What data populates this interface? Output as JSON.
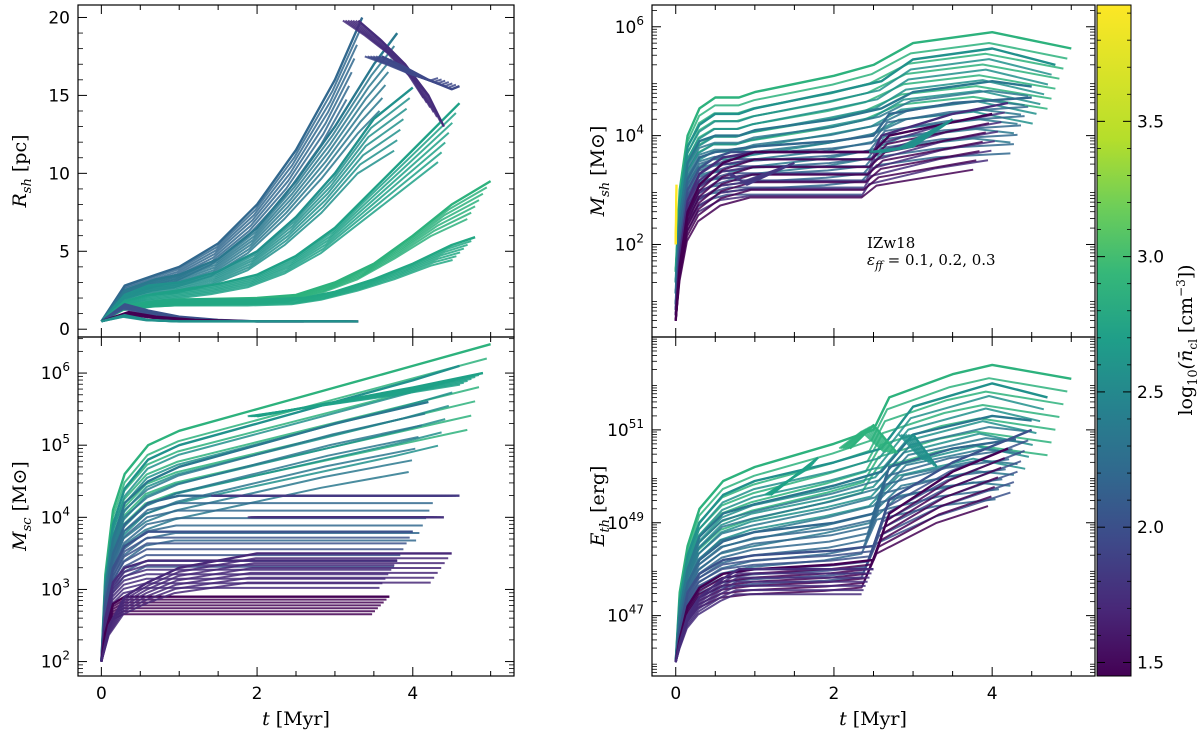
{
  "chart_data": [
    {
      "type": "line",
      "panel": "top-left",
      "xlabel": "",
      "ylabel": "R_sh [pc]",
      "ylabel_main": "R",
      "ylabel_sub": "sh",
      "ylabel_unit": " [pc]",
      "xlim": [
        -0.3,
        5.3
      ],
      "ylim": [
        -0.5,
        20.8
      ],
      "yscale": "linear",
      "yticks": [
        0,
        5,
        10,
        15,
        20
      ],
      "ytick_labels": [
        "0",
        "5",
        "10",
        "15",
        "20"
      ],
      "xticks": [
        0,
        2,
        4
      ],
      "xtick_labels": [
        "",
        "",
        ""
      ],
      "series": [
        {
          "color": "#31688e",
          "x": [
            0,
            0.3,
            0.7,
            1.0,
            1.5,
            2.0,
            2.5,
            3.0,
            3.35
          ],
          "y": [
            0.5,
            2.8,
            3.5,
            4.0,
            5.5,
            8.0,
            11.5,
            16.0,
            20.0
          ]
        },
        {
          "color": "#2a788e",
          "x": [
            0,
            0.3,
            0.7,
            1.0,
            1.5,
            2.0,
            2.5,
            3.0,
            3.5,
            3.8
          ],
          "y": [
            0.5,
            2.5,
            3.2,
            3.5,
            4.5,
            6.5,
            9.5,
            13.0,
            17.0,
            19.0
          ]
        },
        {
          "color": "#21918c",
          "x": [
            0,
            0.3,
            0.6,
            1.0,
            1.5,
            2.0,
            2.5,
            3.0,
            3.5,
            4.0
          ],
          "y": [
            0.5,
            2.2,
            2.8,
            3.0,
            3.7,
            5.0,
            7.2,
            10.0,
            13.5,
            15.5
          ]
        },
        {
          "color": "#1fa187",
          "x": [
            0,
            0.3,
            0.6,
            1.0,
            1.5,
            2.0,
            2.5,
            3.0,
            3.5,
            4.0,
            4.6
          ],
          "y": [
            0.5,
            1.8,
            2.2,
            2.5,
            2.9,
            3.5,
            4.7,
            6.5,
            9.0,
            11.5,
            14.5
          ]
        },
        {
          "color": "#2db27d",
          "x": [
            0,
            0.3,
            0.7,
            1.0,
            2.0,
            2.5,
            3.0,
            3.5,
            4.0,
            4.5,
            5.0
          ],
          "y": [
            0.5,
            1.5,
            1.8,
            1.9,
            2.0,
            2.2,
            3.0,
            4.2,
            6.0,
            8.0,
            9.5
          ]
        },
        {
          "color": "#22a884",
          "x": [
            0,
            0.3,
            0.7,
            1.0,
            2.0,
            2.6,
            3.0,
            3.5,
            4.0,
            4.5,
            4.8
          ],
          "y": [
            0.5,
            1.5,
            1.8,
            1.9,
            1.9,
            2.0,
            2.4,
            3.2,
            4.2,
            5.4,
            5.9
          ]
        },
        {
          "color": "#3b528b",
          "x": [
            0,
            0.3,
            0.6,
            1.0,
            1.5,
            2.0,
            2.6
          ],
          "y": [
            0.5,
            1.6,
            1.2,
            0.8,
            0.6,
            0.5,
            0.5
          ]
        },
        {
          "color": "#440154",
          "x": [
            0,
            0.35,
            0.7,
            1.2,
            2.0,
            2.8,
            3.3
          ],
          "y": [
            0.5,
            1.1,
            0.8,
            0.6,
            0.5,
            0.5,
            0.5
          ]
        },
        {
          "color": "#21918c",
          "x": [
            0,
            0.3,
            0.6,
            1.0,
            2.0,
            3.0,
            3.3
          ],
          "y": [
            0.5,
            0.9,
            0.6,
            0.5,
            0.5,
            0.5,
            0.5
          ]
        },
        {
          "color": "#472d7b",
          "x": [
            3.3,
            3.6,
            3.9,
            4.2,
            4.4
          ],
          "y": [
            19.8,
            18.5,
            17.0,
            15.0,
            13.0
          ]
        },
        {
          "color": "#3e4989",
          "x": [
            3.6,
            3.9,
            4.2,
            4.5,
            4.6
          ],
          "y": [
            17.5,
            16.8,
            16.0,
            15.4,
            15.6
          ]
        }
      ]
    },
    {
      "type": "line",
      "panel": "bottom-left",
      "xlabel": "t [Myr]",
      "xlabel_main": "t",
      "xlabel_unit": " [Myr]",
      "ylabel": "M_sc [M⊙]",
      "ylabel_main": "M",
      "ylabel_sub": "sc",
      "ylabel_unit": " [M⊙]",
      "xlim": [
        -0.3,
        5.3
      ],
      "ylim_log10": [
        1.8,
        6.5
      ],
      "yscale": "log",
      "yticks_log10": [
        2,
        3,
        4,
        5,
        6
      ],
      "ytick_exponents": [
        "2",
        "3",
        "4",
        "5",
        "6"
      ],
      "ytick_base": "10",
      "xticks": [
        0,
        2,
        4
      ],
      "xtick_labels": [
        "0",
        "2",
        "4"
      ],
      "series_log10": [
        {
          "color": "#2db27d",
          "x": [
            0,
            0.05,
            0.15,
            0.3,
            0.6,
            1.0,
            2.0,
            3.0,
            4.0,
            5.0
          ],
          "y": [
            2.0,
            3.2,
            4.1,
            4.6,
            5.0,
            5.2,
            5.5,
            5.8,
            6.1,
            6.4
          ]
        },
        {
          "color": "#21918c",
          "x": [
            0,
            0.05,
            0.15,
            0.3,
            0.6,
            1.0,
            2.0,
            3.0,
            4.0,
            4.6
          ],
          "y": [
            2.0,
            3.1,
            3.9,
            4.4,
            4.8,
            5.0,
            5.3,
            5.6,
            5.9,
            6.1
          ]
        },
        {
          "color": "#2a788e",
          "x": [
            0,
            0.05,
            0.15,
            0.3,
            0.6,
            1.0,
            2.0,
            3.0,
            4.2
          ],
          "y": [
            2.0,
            3.0,
            3.7,
            4.2,
            4.5,
            4.7,
            5.0,
            5.3,
            5.6
          ]
        },
        {
          "color": "#31688e",
          "x": [
            0,
            0.05,
            0.15,
            0.3,
            0.6,
            1.0,
            4.3
          ],
          "y": [
            2.0,
            2.9,
            3.5,
            3.9,
            4.2,
            4.3,
            4.3
          ]
        },
        {
          "color": "#3b528b",
          "x": [
            0,
            0.05,
            0.15,
            0.3,
            0.6,
            4.0
          ],
          "y": [
            2.0,
            2.8,
            3.3,
            3.6,
            3.8,
            3.8
          ]
        },
        {
          "color": "#472d7b",
          "x": [
            0,
            0.05,
            0.15,
            0.3,
            0.6,
            3.8
          ],
          "y": [
            2.0,
            2.6,
            3.1,
            3.3,
            3.4,
            3.4
          ]
        },
        {
          "color": "#440154",
          "x": [
            0,
            0.05,
            0.15,
            0.3,
            0.6,
            3.7
          ],
          "y": [
            2.0,
            2.4,
            2.8,
            2.9,
            2.9,
            2.9
          ]
        },
        {
          "color": "#482878",
          "x": [
            0,
            0.1,
            0.3,
            0.6,
            1.0,
            1.5,
            2.0,
            4.5
          ],
          "y": [
            2.0,
            2.5,
            2.9,
            3.1,
            3.3,
            3.4,
            3.5,
            3.5
          ]
        },
        {
          "color": "#443983",
          "x": [
            1.5,
            4.6
          ],
          "y": [
            4.3,
            4.3
          ]
        },
        {
          "color": "#46337e",
          "x": [
            2.0,
            4.4
          ],
          "y": [
            4.0,
            4.0
          ]
        },
        {
          "color": "#1fa187",
          "x": [
            2.0,
            3.0,
            4.0,
            4.9
          ],
          "y": [
            5.4,
            5.6,
            5.8,
            6.0
          ]
        }
      ]
    },
    {
      "type": "line",
      "panel": "top-right",
      "xlabel": "",
      "ylabel": "M_sh [M⊙]",
      "ylabel_main": "M",
      "ylabel_sub": "sh",
      "ylabel_unit": " [M⊙]",
      "xlim": [
        -0.3,
        5.3
      ],
      "ylim_log10": [
        0.3,
        6.4
      ],
      "yscale": "log",
      "yticks_log10": [
        2,
        4,
        6
      ],
      "ytick_exponents": [
        "2",
        "4",
        "6"
      ],
      "ytick_base": "10",
      "xticks": [
        0,
        2,
        4
      ],
      "xtick_labels": [
        "",
        "",
        ""
      ],
      "annotation_line1": "IZw18",
      "annotation_line2_main": "ε",
      "annotation_line2_sub": "ff",
      "annotation_line2_rest": " = 0.1, 0.2, 0.3",
      "series_log10": [
        {
          "color": "#2db27d",
          "x": [
            0,
            0.05,
            0.15,
            0.3,
            0.5,
            0.8,
            1.0,
            2.0,
            2.5,
            3.0,
            4.0,
            5.0
          ],
          "y": [
            1.5,
            3.0,
            4.0,
            4.5,
            4.7,
            4.7,
            4.8,
            5.1,
            5.3,
            5.7,
            5.9,
            5.6
          ]
        },
        {
          "color": "#21918c",
          "x": [
            0,
            0.05,
            0.15,
            0.3,
            0.5,
            0.8,
            1.0,
            2.0,
            2.6,
            3.0,
            4.0,
            4.8
          ],
          "y": [
            1.3,
            2.8,
            3.8,
            4.2,
            4.4,
            4.4,
            4.5,
            4.8,
            5.0,
            5.4,
            5.6,
            5.3
          ]
        },
        {
          "color": "#2a788e",
          "x": [
            0,
            0.05,
            0.15,
            0.3,
            0.5,
            0.8,
            1.0,
            2.0,
            2.6,
            3.0,
            4.0,
            4.5
          ],
          "y": [
            1.1,
            2.5,
            3.5,
            3.9,
            4.0,
            4.0,
            4.1,
            4.3,
            4.5,
            4.8,
            5.0,
            4.9
          ]
        },
        {
          "color": "#31688e",
          "x": [
            0,
            0.05,
            0.15,
            0.3,
            0.5,
            1.0,
            2.0,
            2.5,
            2.7,
            3.5,
            4.5
          ],
          "y": [
            0.9,
            2.3,
            3.2,
            3.6,
            3.7,
            3.8,
            3.9,
            4.0,
            4.4,
            4.6,
            4.7
          ]
        },
        {
          "color": "#3b528b",
          "x": [
            0,
            0.05,
            0.15,
            0.3,
            0.5,
            0.7,
            1.0,
            2.5
          ],
          "y": [
            0.8,
            2.0,
            3.0,
            3.4,
            3.6,
            3.7,
            3.7,
            3.7
          ]
        },
        {
          "color": "#472d7b",
          "x": [
            0,
            0.05,
            0.15,
            0.3,
            0.6,
            1.0,
            2.5,
            2.6,
            3.5,
            4.2
          ],
          "y": [
            0.7,
            1.8,
            2.8,
            3.3,
            3.6,
            3.7,
            3.7,
            4.0,
            4.4,
            4.6
          ]
        },
        {
          "color": "#440154",
          "x": [
            0,
            0.05,
            0.15,
            0.3,
            0.6,
            1.0,
            2.5,
            2.7,
            4.0
          ],
          "y": [
            0.6,
            1.6,
            2.6,
            3.1,
            3.5,
            3.7,
            3.7,
            4.0,
            4.4
          ]
        },
        {
          "color": "#443983",
          "x": [
            0.7,
            0.9,
            1.2,
            1.5
          ],
          "y": [
            3.3,
            3.1,
            3.3,
            3.5
          ]
        },
        {
          "color": "#fde725",
          "x": [
            0,
            0.01
          ],
          "y": [
            2.0,
            3.1
          ]
        },
        {
          "color": "#21918c",
          "x": [
            2.6,
            3.0,
            3.5
          ],
          "y": [
            3.7,
            3.8,
            4.3
          ]
        }
      ]
    },
    {
      "type": "line",
      "panel": "bottom-right",
      "xlabel": "t [Myr]",
      "xlabel_main": "t",
      "xlabel_unit": " [Myr]",
      "ylabel": "E_th [erg]",
      "ylabel_main": "E",
      "ylabel_sub": "th",
      "ylabel_unit": " [erg]",
      "xlim": [
        -0.3,
        5.3
      ],
      "ylim_log10": [
        45.7,
        53.0
      ],
      "yscale": "log",
      "yticks_log10": [
        47,
        49,
        51
      ],
      "ytick_exponents": [
        "47",
        "49",
        "51"
      ],
      "ytick_base": "10",
      "xticks": [
        0,
        2,
        4
      ],
      "xtick_labels": [
        "0",
        "2",
        "4"
      ],
      "series_log10": [
        {
          "color": "#2db27d",
          "x": [
            0,
            0.05,
            0.15,
            0.3,
            0.6,
            1.0,
            2.0,
            2.5,
            2.7,
            3.5,
            4.0,
            5.0
          ],
          "y": [
            46.0,
            47.5,
            48.5,
            49.3,
            49.9,
            50.2,
            50.7,
            51.0,
            51.7,
            52.2,
            52.4,
            52.1
          ]
        },
        {
          "color": "#21918c",
          "x": [
            0,
            0.05,
            0.15,
            0.3,
            0.6,
            1.0,
            2.0,
            2.6,
            3.0,
            4.0,
            4.7
          ],
          "y": [
            46.0,
            47.3,
            48.3,
            49.0,
            49.6,
            49.9,
            50.3,
            50.6,
            51.5,
            52.0,
            51.7
          ]
        },
        {
          "color": "#2a788e",
          "x": [
            0,
            0.05,
            0.15,
            0.3,
            0.6,
            1.0,
            2.0,
            2.6,
            3.0,
            4.0,
            4.5
          ],
          "y": [
            46.0,
            47.1,
            48.0,
            48.7,
            49.2,
            49.4,
            49.8,
            50.1,
            50.9,
            51.3,
            51.2
          ]
        },
        {
          "color": "#31688e",
          "x": [
            0,
            0.05,
            0.15,
            0.3,
            0.6,
            1.0,
            2.0,
            2.5,
            2.7,
            3.5,
            4.3
          ],
          "y": [
            46.0,
            46.9,
            47.7,
            48.2,
            48.6,
            48.8,
            49.0,
            49.2,
            50.2,
            50.6,
            50.8
          ]
        },
        {
          "color": "#3b528b",
          "x": [
            0,
            0.05,
            0.15,
            0.3,
            0.6,
            1.0,
            2.0,
            2.5,
            2.7,
            3.5,
            4.5
          ],
          "y": [
            46.0,
            46.7,
            47.5,
            47.9,
            48.2,
            48.3,
            48.4,
            48.5,
            49.5,
            50.3,
            51.0
          ]
        },
        {
          "color": "#440154",
          "x": [
            0,
            0.05,
            0.15,
            0.3,
            0.6,
            1.0,
            2.0,
            2.5,
            2.7,
            3.5,
            4.2
          ],
          "y": [
            46.0,
            46.5,
            47.2,
            47.6,
            47.9,
            48.0,
            48.1,
            48.2,
            49.2,
            50.1,
            50.6
          ]
        },
        {
          "color": "#472d7b",
          "x": [
            0,
            0.05,
            0.15,
            0.3,
            0.6,
            0.8,
            1.0,
            2.5
          ],
          "y": [
            46.0,
            46.4,
            47.0,
            47.4,
            47.8,
            48.0,
            48.0,
            48.0
          ]
        },
        {
          "color": "#2db27d",
          "x": [
            2.2,
            2.5,
            2.8
          ],
          "y": [
            50.6,
            51.1,
            50.5
          ]
        },
        {
          "color": "#1fa187",
          "x": [
            1.2,
            1.5,
            1.8
          ],
          "y": [
            49.6,
            50.0,
            50.4
          ]
        },
        {
          "color": "#21918c",
          "x": [
            3.0,
            3.3
          ],
          "y": [
            50.9,
            50.2
          ]
        }
      ]
    }
  ],
  "colorbar": {
    "label_main": "log",
    "label_sub": "10",
    "label_rest": "(n̄",
    "label_rest_sub": "cl",
    "label_tail": " [cm",
    "label_sup": "−3",
    "label_close": "])",
    "vmin": 1.45,
    "vmax": 3.93,
    "colormap": "viridis",
    "ticks": [
      1.5,
      2.0,
      2.5,
      3.0,
      3.5
    ],
    "tick_labels": [
      "1.5",
      "2.0",
      "2.5",
      "3.0",
      "3.5"
    ]
  }
}
